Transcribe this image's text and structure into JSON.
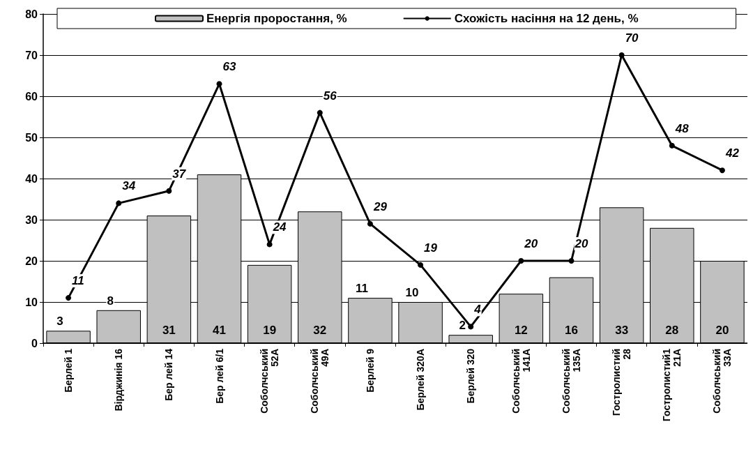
{
  "chart_data": {
    "type": "bar",
    "categories": [
      "Берлей 1",
      "Вірджинія 16",
      "Бер лей 14",
      "Бер лей 6/1",
      "Соболчський\n52А",
      "Соболчський\n49А",
      "Берлей 9",
      "Берлей 320А",
      "Берлей 320",
      "Соболчський\n141А",
      "Соболчський\n135А",
      "Гостролистий\n28",
      "Гостролистий1\n21А",
      "Соболчський\n33А"
    ],
    "series": [
      {
        "name": "Енергія проростання, %",
        "color": "#c0c0c0",
        "values": [
          3,
          8,
          31,
          41,
          19,
          32,
          11,
          10,
          2,
          12,
          16,
          33,
          28,
          20
        ]
      },
      {
        "name": "Схожість насіння на 12 день, %",
        "type": "line",
        "color": "#000000",
        "values": [
          11,
          34,
          37,
          63,
          24,
          56,
          29,
          19,
          4,
          20,
          20,
          70,
          48,
          42
        ]
      }
    ],
    "ylim": [
      0,
      80
    ],
    "yticks": [
      0,
      10,
      20,
      30,
      40,
      50,
      60,
      70,
      80
    ],
    "grid": "y",
    "legend": "top",
    "marker": "circle",
    "line_style": "solid",
    "data_labels": true
  }
}
